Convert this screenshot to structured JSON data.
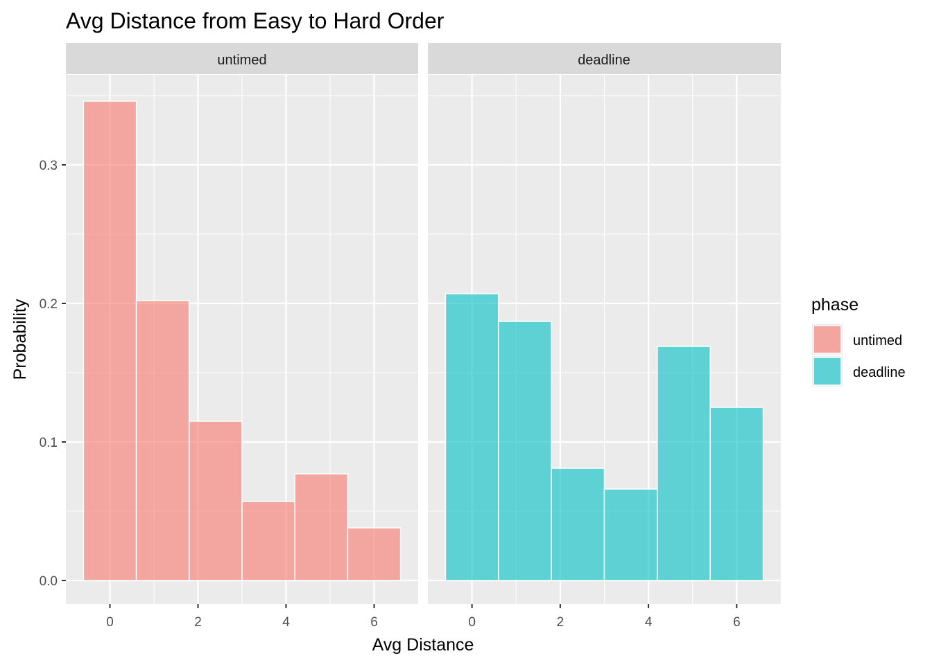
{
  "chart_data": {
    "type": "bar",
    "title": "Avg Distance from Easy to Hard Order",
    "xlabel": "Avg Distance",
    "ylabel": "Probability",
    "xlim": [
      -1,
      7
    ],
    "ylim": [
      -0.017,
      0.365
    ],
    "x_ticks": [
      0,
      2,
      4,
      6
    ],
    "x_tick_labels": [
      "0",
      "2",
      "4",
      "6"
    ],
    "y_ticks": [
      0.0,
      0.1,
      0.2,
      0.3
    ],
    "y_tick_labels": [
      "0.0",
      "0.1",
      "0.2",
      "0.3"
    ],
    "bin_width": 1.2,
    "bin_centers": [
      0,
      1.2,
      2.4,
      3.6,
      4.8,
      6.0
    ],
    "grid": true,
    "legend_title": "phase",
    "legend_position": "right",
    "panels": [
      {
        "strip": "untimed",
        "series": "untimed"
      },
      {
        "strip": "deadline",
        "series": "deadline"
      }
    ],
    "series": [
      {
        "name": "untimed",
        "color": "#F8766D",
        "values": [
          0.346,
          0.202,
          0.115,
          0.057,
          0.077,
          0.038
        ]
      },
      {
        "name": "deadline",
        "color": "#00BFC4",
        "values": [
          0.207,
          0.187,
          0.081,
          0.066,
          0.169,
          0.125
        ]
      }
    ]
  }
}
